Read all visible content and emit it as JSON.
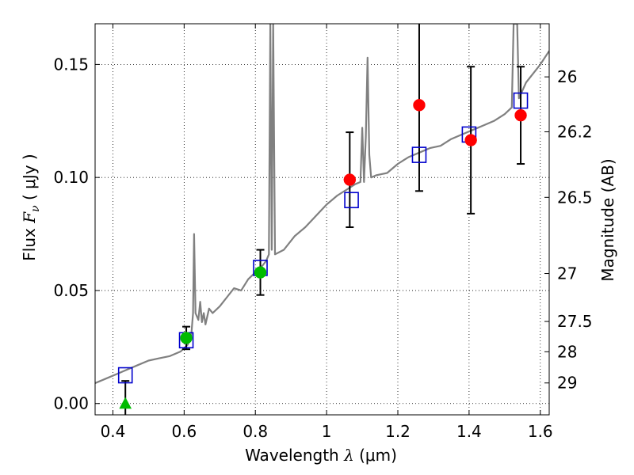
{
  "chart_data": {
    "type": "scatter",
    "xlabel": {
      "prefix": "Wavelength  ",
      "symbol": "λ",
      "unit": " (μm)"
    },
    "ylabel": {
      "prefix": "Flux  ",
      "symbol": "F",
      "sub": "ν",
      "unit": "  ( μJy )"
    },
    "y2label": "Magnitude (AB)",
    "xlim": [
      0.35,
      1.625
    ],
    "ylim": [
      -0.005,
      0.168
    ],
    "x_ticks": [
      0.4,
      0.6,
      0.8,
      1.0,
      1.2,
      1.4,
      1.6
    ],
    "x_tick_labels": [
      "0.4",
      "0.6",
      "0.8",
      "1",
      "1.2",
      "1.4",
      "1.6"
    ],
    "y_ticks": [
      0.0,
      0.05,
      0.1,
      0.15
    ],
    "y_tick_labels": [
      "0.00",
      "0.05",
      "0.10",
      "0.15"
    ],
    "y2_ticks": [
      {
        "label": "26",
        "flux": 0.1445
      },
      {
        "label": "26.2",
        "flux": 0.1202
      },
      {
        "label": "26.5",
        "flux": 0.0912
      },
      {
        "label": "27",
        "flux": 0.0575
      },
      {
        "label": "27.5",
        "flux": 0.0363
      },
      {
        "label": "28",
        "flux": 0.0229
      },
      {
        "label": "29",
        "flux": 0.0091
      }
    ],
    "grid": true,
    "colors": {
      "model": "#808080",
      "green": "#00bb00",
      "red": "#ff0000",
      "blue": "#0000cc",
      "errorbar": "#000000"
    },
    "model_spectrum": {
      "name": "",
      "points": [
        [
          0.35,
          0.009
        ],
        [
          0.38,
          0.011
        ],
        [
          0.41,
          0.013
        ],
        [
          0.44,
          0.015
        ],
        [
          0.47,
          0.017
        ],
        [
          0.5,
          0.019
        ],
        [
          0.53,
          0.02
        ],
        [
          0.56,
          0.021
        ],
        [
          0.59,
          0.023
        ],
        [
          0.61,
          0.026
        ],
        [
          0.62,
          0.03
        ],
        [
          0.625,
          0.04
        ],
        [
          0.628,
          0.075
        ],
        [
          0.632,
          0.04
        ],
        [
          0.64,
          0.037
        ],
        [
          0.645,
          0.045
        ],
        [
          0.65,
          0.036
        ],
        [
          0.655,
          0.04
        ],
        [
          0.66,
          0.035
        ],
        [
          0.67,
          0.042
        ],
        [
          0.68,
          0.04
        ],
        [
          0.7,
          0.043
        ],
        [
          0.72,
          0.047
        ],
        [
          0.74,
          0.051
        ],
        [
          0.76,
          0.05
        ],
        [
          0.78,
          0.055
        ],
        [
          0.8,
          0.058
        ],
        [
          0.82,
          0.061
        ],
        [
          0.83,
          0.063
        ],
        [
          0.838,
          0.066
        ],
        [
          0.842,
          0.168
        ],
        [
          0.846,
          0.068
        ],
        [
          0.85,
          0.168
        ],
        [
          0.855,
          0.066
        ],
        [
          0.88,
          0.068
        ],
        [
          0.91,
          0.074
        ],
        [
          0.94,
          0.078
        ],
        [
          0.97,
          0.083
        ],
        [
          1.0,
          0.088
        ],
        [
          1.03,
          0.092
        ],
        [
          1.06,
          0.095
        ],
        [
          1.08,
          0.097
        ],
        [
          1.095,
          0.098
        ],
        [
          1.1,
          0.122
        ],
        [
          1.105,
          0.098
        ],
        [
          1.11,
          0.118
        ],
        [
          1.115,
          0.153
        ],
        [
          1.12,
          0.11
        ],
        [
          1.125,
          0.1
        ],
        [
          1.14,
          0.101
        ],
        [
          1.17,
          0.102
        ],
        [
          1.2,
          0.106
        ],
        [
          1.23,
          0.109
        ],
        [
          1.26,
          0.111
        ],
        [
          1.29,
          0.113
        ],
        [
          1.32,
          0.114
        ],
        [
          1.35,
          0.117
        ],
        [
          1.38,
          0.119
        ],
        [
          1.41,
          0.121
        ],
        [
          1.44,
          0.123
        ],
        [
          1.47,
          0.125
        ],
        [
          1.5,
          0.128
        ],
        [
          1.52,
          0.131
        ],
        [
          1.525,
          0.168
        ],
        [
          1.535,
          0.168
        ],
        [
          1.54,
          0.135
        ],
        [
          1.56,
          0.142
        ],
        [
          1.58,
          0.146
        ],
        [
          1.6,
          0.15
        ],
        [
          1.625,
          0.156
        ]
      ]
    },
    "series": [
      {
        "name": "",
        "marker": "triangle",
        "color": "#00bb00",
        "points": [
          {
            "x": 0.435,
            "y": 0.0,
            "err": 0.01
          }
        ]
      },
      {
        "name": "",
        "marker": "circle",
        "color": "#00bb00",
        "points": [
          {
            "x": 0.606,
            "y": 0.029,
            "err": 0.005
          },
          {
            "x": 0.814,
            "y": 0.058,
            "err": 0.01
          }
        ]
      },
      {
        "name": "",
        "marker": "circle",
        "color": "#ff0000",
        "points": [
          {
            "x": 1.065,
            "y": 0.099,
            "err": 0.021
          },
          {
            "x": 1.26,
            "y": 0.132,
            "err": 0.038
          },
          {
            "x": 1.405,
            "y": 0.1165,
            "err": 0.0325
          },
          {
            "x": 1.545,
            "y": 0.1275,
            "err": 0.0215
          }
        ]
      },
      {
        "name": "",
        "marker": "square",
        "color": "#0000cc",
        "points": [
          {
            "x": 0.435,
            "y": 0.0125
          },
          {
            "x": 0.606,
            "y": 0.028
          },
          {
            "x": 0.814,
            "y": 0.06
          },
          {
            "x": 1.07,
            "y": 0.09
          },
          {
            "x": 1.26,
            "y": 0.11
          },
          {
            "x": 1.4,
            "y": 0.119
          },
          {
            "x": 1.545,
            "y": 0.134
          }
        ]
      }
    ]
  }
}
